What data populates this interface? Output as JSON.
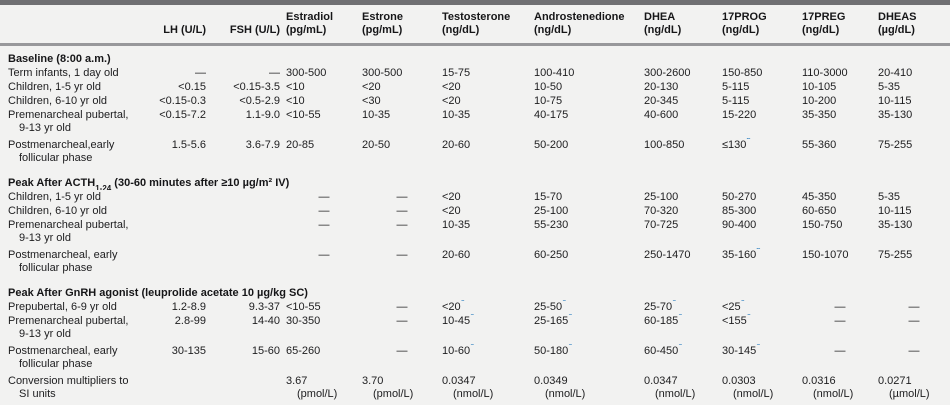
{
  "table": {
    "corner_label": "",
    "columns": [
      {
        "id": "lh",
        "lines": [
          "LH (U/L)"
        ],
        "align": "right"
      },
      {
        "id": "fsh",
        "lines": [
          "FSH (U/L)"
        ],
        "align": "right"
      },
      {
        "id": "estradiol",
        "lines": [
          "Estradiol",
          "(pg/mL)"
        ],
        "align": "left"
      },
      {
        "id": "estrone",
        "lines": [
          "Estrone",
          "(pg/mL)"
        ],
        "align": "left"
      },
      {
        "id": "testosterone",
        "lines": [
          "Testosterone",
          "(ng/dL)"
        ],
        "align": "left"
      },
      {
        "id": "androstenedione",
        "lines": [
          "Androstenedione",
          "(ng/dL)"
        ],
        "align": "left"
      },
      {
        "id": "dhea",
        "lines": [
          "DHEA",
          "(ng/dL)"
        ],
        "align": "left"
      },
      {
        "id": "17prog",
        "lines": [
          "17PROG",
          "(ng/dL)"
        ],
        "align": "left"
      },
      {
        "id": "17preg",
        "lines": [
          "17PREG",
          "(ng/dL)"
        ],
        "align": "left"
      },
      {
        "id": "dheas",
        "lines": [
          "DHEAS",
          "(µg/dL)"
        ],
        "align": "left"
      }
    ],
    "sections": [
      {
        "heading": "Baseline (8:00 a.m.)",
        "rows": [
          {
            "label": "Term infants, 1 day old",
            "values": [
              "—",
              "—",
              "300-500",
              "300-500",
              "15-75",
              "100-410",
              "300-2600",
              "150-850",
              "110-3000",
              "20-410"
            ]
          },
          {
            "label": "Children, 1-5 yr old",
            "values": [
              "<0.15",
              "<0.15-3.5",
              "<10",
              "<20",
              "<20",
              "10-50",
              "20-130",
              "5-115",
              "10-105",
              "5-35"
            ]
          },
          {
            "label": "Children, 6-10 yr old",
            "values": [
              "<0.15-0.3",
              "<0.5-2.9",
              "<10",
              "<30",
              "<20",
              "10-75",
              "20-345",
              "5-115",
              "10-200",
              "10-115"
            ]
          },
          {
            "label": "Premenarcheal pubertal,\n9-13 yr old",
            "values": [
              "<0.15-7.2",
              "1.1-9.0",
              "<10-55",
              "10-35",
              "10-35",
              "40-175",
              "40-600",
              "15-220",
              "35-350",
              "35-130"
            ]
          },
          {
            "label": "Postmenarcheal,early\nfollicular phase",
            "values": [
              "1.5-5.6",
              "3.6-7.9",
              "20-85",
              "20-50",
              "20-60",
              "50-200",
              "100-850",
              "≤130^b",
              "55-360",
              "75-255"
            ]
          }
        ]
      },
      {
        "heading": "Peak After ACTH_{1-24} (30-60 minutes after ≥10 µg/m² IV)",
        "rows": [
          {
            "label": "Children, 1-5 yr old",
            "values": [
              "",
              "",
              "—",
              "—",
              "<20",
              "15-70",
              "25-100",
              "50-270",
              "45-350",
              "5-35"
            ]
          },
          {
            "label": "Children, 6-10 yr old",
            "values": [
              "",
              "",
              "—",
              "—",
              "<20",
              "25-100",
              "70-320",
              "85-300",
              "60-650",
              "10-115"
            ]
          },
          {
            "label": "Premenarcheal pubertal,\n9-13 yr old",
            "values": [
              "",
              "",
              "—",
              "—",
              "10-35",
              "55-230",
              "70-725",
              "90-400",
              "150-750",
              "35-130"
            ]
          },
          {
            "label": "Postmenarcheal, early\nfollicular phase",
            "values": [
              "",
              "",
              "—",
              "—",
              "20-60",
              "60-250",
              "250-1470",
              "35-160^b",
              "150-1070",
              "75-255"
            ]
          }
        ]
      },
      {
        "heading": "Peak After GnRH agonist (leuprolide acetate 10 µg/kg SC)",
        "rows": [
          {
            "label": "Prepubertal, 6-9 yr old",
            "values": [
              "1.2-8.9",
              "9.3-37",
              "<10-55",
              "—",
              "<20^c",
              "25-50^c",
              "25-70^c",
              "<25^c",
              "—",
              "—"
            ]
          },
          {
            "label": "Premenarcheal pubertal,\n9-13 yr old",
            "values": [
              "2.8-99",
              "14-40",
              "30-350",
              "—",
              "10-45^c",
              "25-165^c",
              "60-185^c",
              "<155^c",
              "—",
              "—"
            ]
          },
          {
            "label": "Postmenarcheal, early\nfollicular phase",
            "values": [
              "30-135",
              "15-60",
              "65-260",
              "—",
              "10-60^c",
              "50-180^c",
              "60-450^c",
              "30-145^c",
              "—",
              "—"
            ]
          },
          {
            "label": "Conversion multipliers to\nSI units",
            "values": [
              "",
              "",
              "3.67\n(pmol/L)",
              "3.70\n(pmol/L)",
              "0.0347\n(nmol/L)",
              "0.0349\n(nmol/L)",
              "0.0347\n(nmol/L)",
              "0.0303\n(nmol/L)",
              "0.0316\n(nmol/L)",
              "0.0271\n(µmol/L)"
            ]
          }
        ]
      }
    ]
  }
}
